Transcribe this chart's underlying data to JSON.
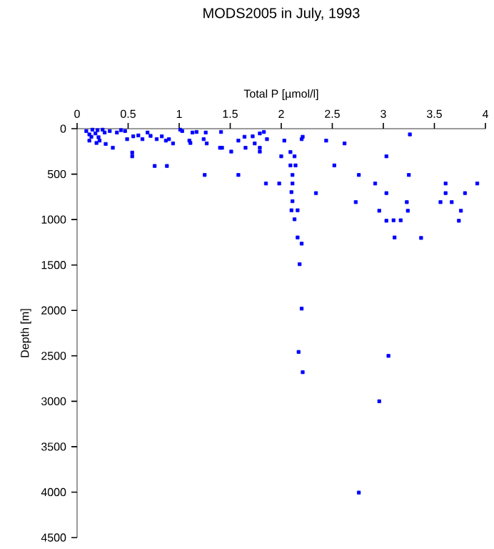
{
  "chart_data": {
    "type": "scatter",
    "title": "MODS2005 in July, 1993",
    "xlabel": "Total P [µmol/l]",
    "ylabel": "Depth [m]",
    "xlim": [
      0,
      4
    ],
    "xticks": [
      0,
      0.5,
      1,
      1.5,
      2,
      2.5,
      3,
      3.5,
      4
    ],
    "ylim": [
      4500,
      0
    ],
    "yticks": [
      0,
      500,
      1000,
      1500,
      2000,
      2500,
      3000,
      3500,
      4000,
      4500
    ],
    "marker": "square",
    "series": [
      {
        "color": "#0000ff",
        "x": [
          0.09,
          0.12,
          0.12,
          0.15,
          0.18,
          0.14,
          0.2,
          0.21,
          0.19,
          0.22,
          0.25,
          0.27,
          0.28,
          0.32,
          0.35,
          0.39,
          0.43,
          0.47,
          0.49,
          0.54,
          0.54,
          0.55,
          0.6,
          0.64,
          0.69,
          0.72,
          0.76,
          0.78,
          0.83,
          0.87,
          0.88,
          0.9,
          0.94,
          1.01,
          1.03,
          1.1,
          1.11,
          1.13,
          1.17,
          1.25,
          1.24,
          1.26,
          1.27,
          1.41,
          1.4,
          1.42,
          1.51,
          1.58,
          1.58,
          1.64,
          1.65,
          1.72,
          1.74,
          1.79,
          1.83,
          1.86,
          2.03,
          2.21,
          2.2,
          2.44,
          2.62,
          3.26,
          1.79,
          1.79,
          2.09,
          2.0,
          2.13,
          2.09,
          2.14,
          2.52,
          3.03,
          2.11,
          2.76,
          3.25,
          1.85,
          1.98,
          2.11,
          2.92,
          3.61,
          3.92,
          2.1,
          2.34,
          3.03,
          3.61,
          3.8,
          2.11,
          2.73,
          3.23,
          3.56,
          3.67,
          2.1,
          2.16,
          2.96,
          3.24,
          3.76,
          2.13,
          3.03,
          3.1,
          3.17,
          3.74,
          2.16,
          3.11,
          3.37,
          2.2,
          2.18,
          2.2,
          2.17,
          2.21,
          3.05,
          2.96,
          2.76
        ],
        "values": [
          26,
          63,
          131,
          11,
          52,
          89,
          16,
          94,
          157,
          131,
          11,
          42,
          168,
          26,
          210,
          42,
          16,
          26,
          115,
          263,
          304,
          84,
          74,
          115,
          42,
          79,
          410,
          115,
          84,
          131,
          410,
          115,
          162,
          11,
          26,
          131,
          157,
          42,
          36,
          509,
          115,
          42,
          162,
          36,
          210,
          210,
          252,
          509,
          131,
          89,
          210,
          84,
          162,
          52,
          36,
          115,
          131,
          89,
          115,
          131,
          162,
          63,
          210,
          252,
          257,
          304,
          304,
          404,
          404,
          404,
          304,
          509,
          509,
          509,
          603,
          603,
          603,
          603,
          603,
          603,
          698,
          709,
          709,
          709,
          709,
          798,
          808,
          808,
          808,
          808,
          898,
          898,
          903,
          903,
          903,
          997,
          1013,
          1008,
          1008,
          1013,
          1197,
          1197,
          1202,
          1265,
          1491,
          1980,
          2457,
          2680,
          2500,
          3000,
          4005
        ]
      }
    ]
  }
}
